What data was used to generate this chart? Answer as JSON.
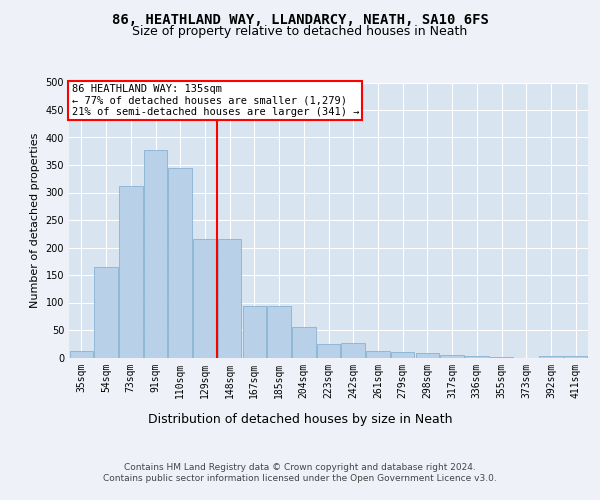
{
  "title1": "86, HEATHLAND WAY, LLANDARCY, NEATH, SA10 6FS",
  "title2": "Size of property relative to detached houses in Neath",
  "xlabel": "Distribution of detached houses by size in Neath",
  "ylabel": "Number of detached properties",
  "bar_labels": [
    "35sqm",
    "54sqm",
    "73sqm",
    "91sqm",
    "110sqm",
    "129sqm",
    "148sqm",
    "167sqm",
    "185sqm",
    "204sqm",
    "223sqm",
    "242sqm",
    "261sqm",
    "279sqm",
    "298sqm",
    "317sqm",
    "336sqm",
    "355sqm",
    "373sqm",
    "392sqm",
    "411sqm"
  ],
  "bar_values": [
    11,
    165,
    312,
    377,
    345,
    215,
    215,
    93,
    93,
    55,
    25,
    27,
    12,
    10,
    8,
    5,
    3,
    1,
    0,
    3,
    3
  ],
  "bar_color": "#b8d0e8",
  "bar_edge_color": "#7aaacf",
  "vline_x": 5.5,
  "vline_color": "red",
  "annotation_lines": [
    "86 HEATHLAND WAY: 135sqm",
    "← 77% of detached houses are smaller (1,279)",
    "21% of semi-detached houses are larger (341) →"
  ],
  "ylim": [
    0,
    500
  ],
  "yticks": [
    0,
    50,
    100,
    150,
    200,
    250,
    300,
    350,
    400,
    450,
    500
  ],
  "fig_facecolor": "#eef2f8",
  "plot_bg_color": "#d8e4f0",
  "footer1": "Contains HM Land Registry data © Crown copyright and database right 2024.",
  "footer2": "Contains public sector information licensed under the Open Government Licence v3.0.",
  "title1_fontsize": 10,
  "title2_fontsize": 9,
  "xlabel_fontsize": 9,
  "ylabel_fontsize": 8,
  "tick_fontsize": 7,
  "annot_fontsize": 7.5,
  "footer_fontsize": 6.5
}
